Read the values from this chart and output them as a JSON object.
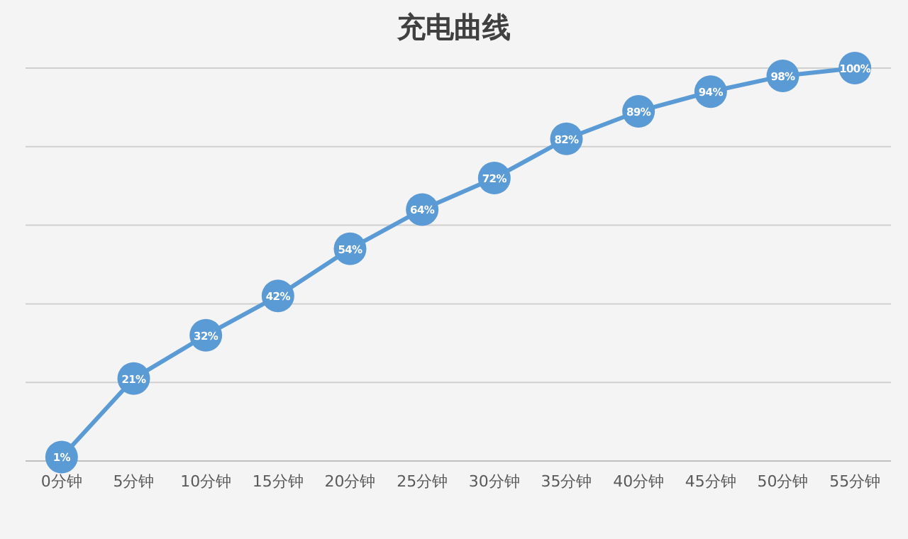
{
  "chart_data": {
    "type": "line",
    "title": "充电曲线",
    "categories": [
      "0分钟",
      "5分钟",
      "10分钟",
      "15分钟",
      "20分钟",
      "25分钟",
      "30分钟",
      "35分钟",
      "40分钟",
      "45分钟",
      "50分钟",
      "55分钟"
    ],
    "values": [
      1,
      21,
      32,
      42,
      54,
      64,
      72,
      82,
      89,
      94,
      98,
      100
    ],
    "value_labels": [
      "1%",
      "21%",
      "32%",
      "42%",
      "54%",
      "64%",
      "72%",
      "82%",
      "89%",
      "94%",
      "98%",
      "100%"
    ],
    "color": "#5b9bd5",
    "ylim": [
      0,
      100
    ],
    "yticks": [
      {
        "value": 0,
        "label": null
      },
      {
        "value": 20,
        "label": null
      },
      {
        "value": 40,
        "label": null
      },
      {
        "value": 60,
        "label": null
      },
      {
        "value": 80,
        "label": null
      },
      {
        "value": 100,
        "label": null
      }
    ],
    "tick_labels": "x",
    "grid": "y",
    "marker": "circle",
    "line_style": "solid"
  }
}
